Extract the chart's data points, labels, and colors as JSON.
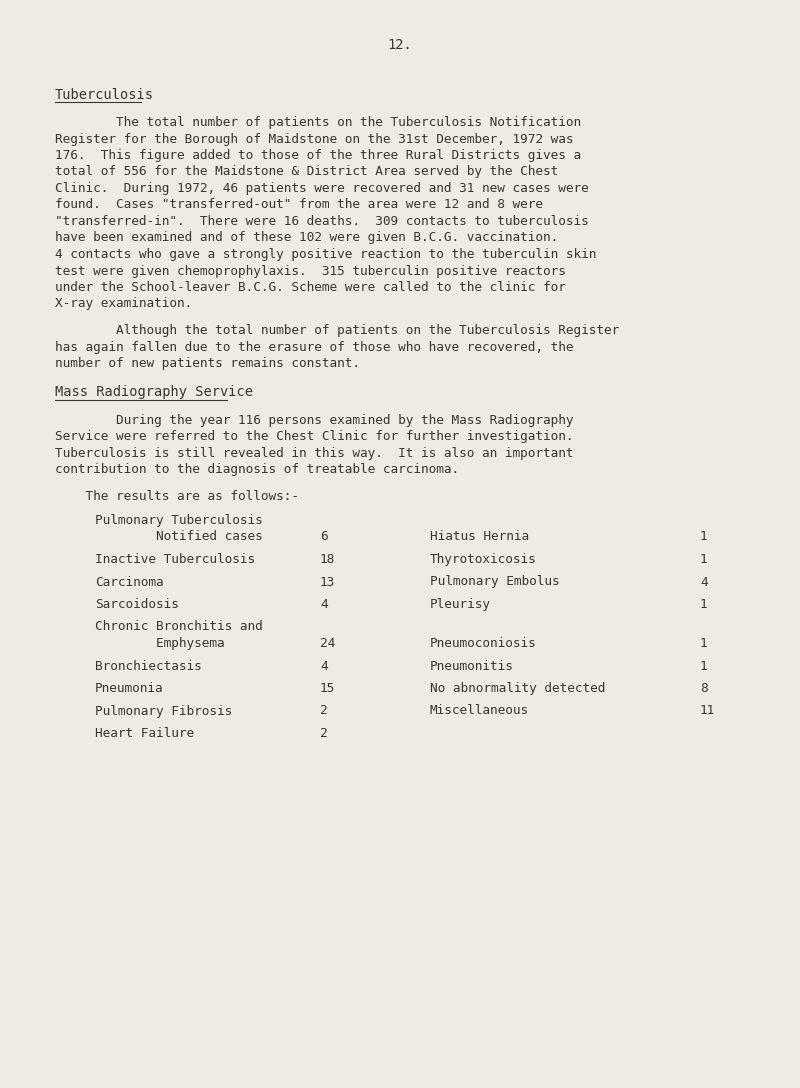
{
  "background_color": "#eeebe3",
  "text_color": "#3a3530",
  "page_number": "12.",
  "section1_heading": "Tuberculosis",
  "para1_lines": [
    "        The total number of patients on the Tuberculosis Notification",
    "Register for the Borough of Maidstone on the 31st December, 1972 was",
    "176.  This figure added to those of the three Rural Districts gives a",
    "total of 556 for the Maidstone & District Area served by the Chest",
    "Clinic.  During 1972, 46 patients were recovered and 31 new cases were",
    "found.  Cases \"transferred-out\" from the area were 12 and 8 were",
    "\"transferred-in\".  There were 16 deaths.  309 contacts to tuberculosis",
    "have been examined and of these 102 were given B.C.G. vaccination.",
    "4 contacts who gave a strongly positive reaction to the tuberculin skin",
    "test were given chemoprophylaxis.  315 tuberculin positive reactors",
    "under the School-leaver B.C.G. Scheme were called to the clinic for",
    "X-ray examination."
  ],
  "para2_lines": [
    "        Although the total number of patients on the Tuberculosis Register",
    "has again fallen due to the erasure of those who have recovered, the",
    "number of new patients remains constant."
  ],
  "section2_heading": "Mass Radiography Service",
  "para3_lines": [
    "        During the year 116 persons examined by the Mass Radiography",
    "Service were referred to the Chest Clinic for further investigation.",
    "Tuberculosis is still revealed in this way.  It is also an important",
    "contribution to the diagnosis of treatable carcinoma."
  ],
  "results_intro": "    The results are as follows:-",
  "left_col": [
    {
      "label1": "Pulmonary Tuberculosis",
      "label2": "        Notified cases",
      "value": "6",
      "two_line": true
    },
    {
      "label1": "Inactive Tuberculosis",
      "label2": null,
      "value": "18",
      "two_line": false
    },
    {
      "label1": "Carcinoma",
      "label2": null,
      "value": "13",
      "two_line": false
    },
    {
      "label1": "Sarcoidosis",
      "label2": null,
      "value": "4",
      "two_line": false
    },
    {
      "label1": "Chronic Bronchitis and",
      "label2": "        Emphysema",
      "value": "24",
      "two_line": true
    },
    {
      "label1": "Bronchiectasis",
      "label2": null,
      "value": "4",
      "two_line": false
    },
    {
      "label1": "Pneumonia",
      "label2": null,
      "value": "15",
      "two_line": false
    },
    {
      "label1": "Pulmonary Fibrosis",
      "label2": null,
      "value": "2",
      "two_line": false
    },
    {
      "label1": "Heart Failure",
      "label2": null,
      "value": "2",
      "two_line": false
    }
  ],
  "right_col": [
    {
      "label": "Hiatus Hernia",
      "value": "1"
    },
    {
      "label": "Thyrotoxicosis",
      "value": "1"
    },
    {
      "label": "Pulmonary Embolus",
      "value": "4"
    },
    {
      "label": "Pleurisy",
      "value": "1"
    },
    {
      "label": "Pneumoconiosis",
      "value": "1"
    },
    {
      "label": "Pneumonitis",
      "value": "1"
    },
    {
      "label": "No abnormality detected",
      "value": "8"
    },
    {
      "label": "Miscellaneous",
      "value": "11"
    }
  ],
  "font_size_body": 9.2,
  "font_size_heading": 9.8,
  "font_size_page_num": 9.8
}
